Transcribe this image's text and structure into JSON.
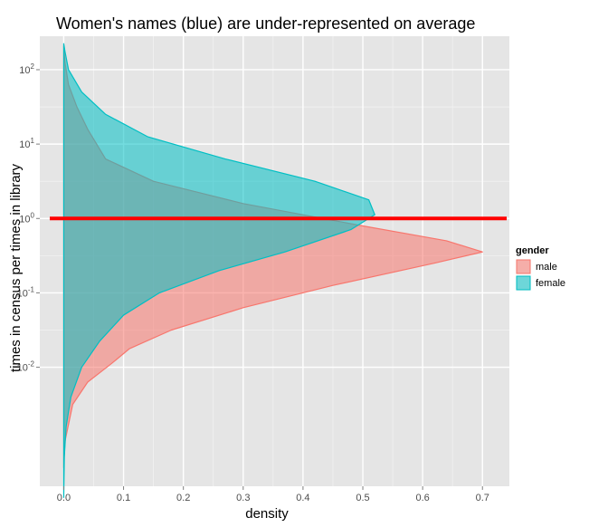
{
  "colors": {
    "panel": "#e5e5e5",
    "grid_major": "#ffffff",
    "grid_minor": "#f2f2f2",
    "male_fill": "#f8766d",
    "female_fill": "#00bfc4",
    "reference_line": "#ff0000"
  },
  "chart_data": {
    "type": "area",
    "subtype": "violin-density (horizontal, log-scale y)",
    "title": "Women's names (blue) are under-represented on average",
    "xlabel": "density",
    "ylabel": "times in census per times in library",
    "xlim": [
      -0.04,
      0.745
    ],
    "ylim_log10": [
      -3.6,
      2.45
    ],
    "y_scale": "log10",
    "grid": true,
    "x_ticks": [
      0.0,
      0.1,
      0.2,
      0.3,
      0.4,
      0.5,
      0.6,
      0.7
    ],
    "x_tick_labels": [
      "0.0",
      "0.1",
      "0.2",
      "0.3",
      "0.4",
      "0.5",
      "0.6",
      "0.7"
    ],
    "y_ticks": [
      {
        "exp": -2,
        "base": "10",
        "sup": "-2"
      },
      {
        "exp": -1,
        "base": "10",
        "sup": "-1"
      },
      {
        "exp": 0,
        "base": "10",
        "sup": "0"
      },
      {
        "exp": 1,
        "base": "10",
        "sup": "1"
      },
      {
        "exp": 2,
        "base": "10",
        "sup": "2"
      }
    ],
    "reference_line": {
      "y": 1.0
    },
    "legend": {
      "title": "gender",
      "position": "right"
    },
    "series": [
      {
        "name": "male",
        "color": "#f8766d",
        "points": [
          {
            "log10_y": -3.35,
            "density": 0.0
          },
          {
            "log10_y": -3.0,
            "density": 0.002
          },
          {
            "log10_y": -2.5,
            "density": 0.015
          },
          {
            "log10_y": -2.2,
            "density": 0.04
          },
          {
            "log10_y": -1.95,
            "density": 0.08
          },
          {
            "log10_y": -1.75,
            "density": 0.11
          },
          {
            "log10_y": -1.5,
            "density": 0.18
          },
          {
            "log10_y": -1.2,
            "density": 0.3
          },
          {
            "log10_y": -0.9,
            "density": 0.45
          },
          {
            "log10_y": -0.6,
            "density": 0.62
          },
          {
            "log10_y": -0.45,
            "density": 0.7
          },
          {
            "log10_y": -0.3,
            "density": 0.64
          },
          {
            "log10_y": -0.1,
            "density": 0.5
          },
          {
            "log10_y": 0.2,
            "density": 0.3
          },
          {
            "log10_y": 0.5,
            "density": 0.15
          },
          {
            "log10_y": 0.8,
            "density": 0.07
          },
          {
            "log10_y": 1.2,
            "density": 0.04
          },
          {
            "log10_y": 1.5,
            "density": 0.022
          },
          {
            "log10_y": 1.8,
            "density": 0.008
          },
          {
            "log10_y": 2.1,
            "density": 0.002
          },
          {
            "log10_y": 2.32,
            "density": 0.0
          }
        ]
      },
      {
        "name": "female",
        "color": "#00bfc4",
        "points": [
          {
            "log10_y": -3.75,
            "density": 0.0
          },
          {
            "log10_y": -3.2,
            "density": 0.001
          },
          {
            "log10_y": -2.8,
            "density": 0.004
          },
          {
            "log10_y": -2.4,
            "density": 0.012
          },
          {
            "log10_y": -2.0,
            "density": 0.03
          },
          {
            "log10_y": -1.65,
            "density": 0.06
          },
          {
            "log10_y": -1.3,
            "density": 0.1
          },
          {
            "log10_y": -1.0,
            "density": 0.16
          },
          {
            "log10_y": -0.7,
            "density": 0.26
          },
          {
            "log10_y": -0.45,
            "density": 0.37
          },
          {
            "log10_y": -0.15,
            "density": 0.48
          },
          {
            "log10_y": 0.05,
            "density": 0.52
          },
          {
            "log10_y": 0.25,
            "density": 0.51
          },
          {
            "log10_y": 0.5,
            "density": 0.42
          },
          {
            "log10_y": 0.8,
            "density": 0.27
          },
          {
            "log10_y": 1.1,
            "density": 0.14
          },
          {
            "log10_y": 1.4,
            "density": 0.07
          },
          {
            "log10_y": 1.7,
            "density": 0.03
          },
          {
            "log10_y": 2.0,
            "density": 0.008
          },
          {
            "log10_y": 2.25,
            "density": 0.002
          },
          {
            "log10_y": 2.35,
            "density": 0.0
          }
        ]
      }
    ]
  }
}
